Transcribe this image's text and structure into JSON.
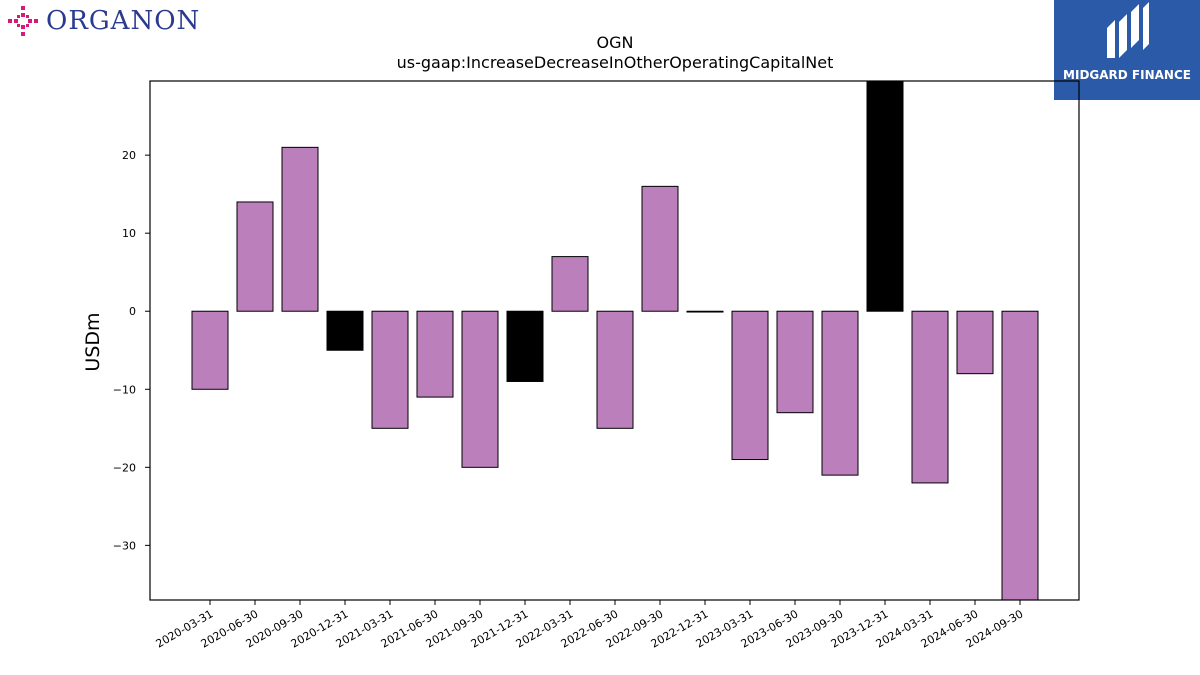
{
  "branding": {
    "left_logo_text": "ORGANON",
    "right_logo_text": "MIDGARD FINANCE"
  },
  "colors": {
    "positive_bar": "#bb80bc",
    "highlight_bar": "#000000",
    "organon_mark": "#d6197a",
    "organon_text": "#2a3a8f",
    "midgard_bg": "#2b5aa8"
  },
  "chart_data": {
    "type": "bar",
    "title": "OGN",
    "subtitle": "us-gaap:IncreaseDecreaseInOtherOperatingCapitalNet",
    "xlabel": "",
    "ylabel": "USDm",
    "ylim": [
      -37,
      29.5
    ],
    "yticks": [
      -30,
      -20,
      -10,
      0,
      10,
      20
    ],
    "grid": false,
    "categories": [
      "2020-03-31",
      "2020-06-30",
      "2020-09-30",
      "2020-12-31",
      "2021-03-31",
      "2021-06-30",
      "2021-09-30",
      "2021-12-31",
      "2022-03-31",
      "2022-06-30",
      "2022-09-30",
      "2022-12-31",
      "2023-03-31",
      "2023-06-30",
      "2023-09-30",
      "2023-12-31",
      "2024-03-31",
      "2024-06-30",
      "2024-09-30"
    ],
    "values": [
      -10,
      14,
      21,
      -5,
      -15,
      -11,
      -20,
      -9,
      7,
      -15,
      16,
      0,
      -19,
      -13,
      -21,
      29.5,
      -22,
      -8,
      -37
    ],
    "bar_colors": [
      "purple",
      "purple",
      "purple",
      "black",
      "purple",
      "purple",
      "purple",
      "black",
      "purple",
      "purple",
      "purple",
      "purple",
      "purple",
      "purple",
      "purple",
      "black",
      "purple",
      "purple",
      "purple"
    ]
  }
}
